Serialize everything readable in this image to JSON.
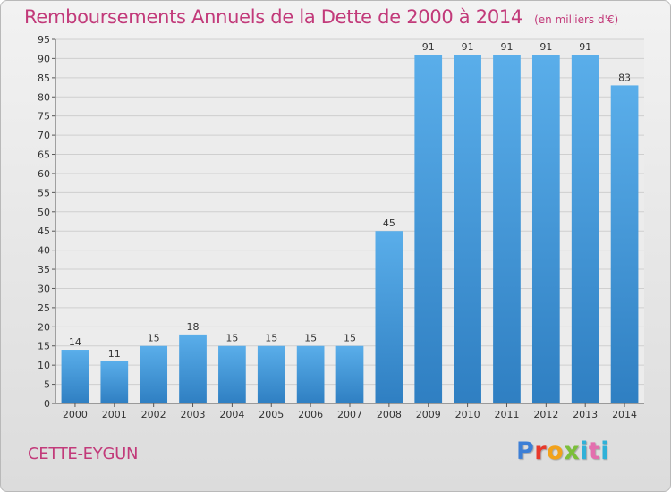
{
  "chart_data": {
    "type": "bar",
    "title": "Remboursements Annuels de la Dette de 2000 à 2014",
    "unit_note": "(en milliers d'€)",
    "categories": [
      "2000",
      "2001",
      "2002",
      "2003",
      "2004",
      "2005",
      "2006",
      "2007",
      "2008",
      "2009",
      "2010",
      "2011",
      "2012",
      "2013",
      "2014"
    ],
    "values": [
      14,
      11,
      15,
      18,
      15,
      15,
      15,
      15,
      45,
      91,
      91,
      91,
      91,
      91,
      83
    ],
    "ylim": [
      0,
      95
    ],
    "yticks": [
      0,
      5,
      10,
      15,
      20,
      25,
      30,
      35,
      40,
      45,
      50,
      55,
      60,
      65,
      70,
      75,
      80,
      85,
      90,
      95
    ],
    "xlabel": "",
    "ylabel": "",
    "grid": true,
    "bar_color": "#4f9fdf"
  },
  "commune": "CETTE-EYGUN",
  "logo": {
    "letters": [
      "P",
      "r",
      "o",
      "x",
      "i",
      "t",
      "i"
    ]
  }
}
